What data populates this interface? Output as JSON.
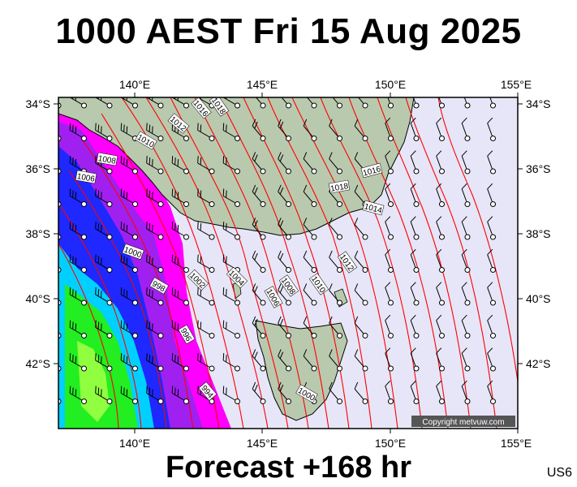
{
  "title": "1000 AEST Fri 15 Aug 2025",
  "forecast_label": "Forecast +168 hr",
  "model_code": "US6",
  "copyright": "Copyright metvuw.com",
  "map": {
    "lon_range": [
      137,
      155
    ],
    "lat_range": [
      -44,
      -33.8
    ],
    "lon_ticks": [
      {
        "value": 140,
        "label": "140°E"
      },
      {
        "value": 145,
        "label": "145°E"
      },
      {
        "value": 150,
        "label": "150°E"
      },
      {
        "value": 155,
        "label": "155°E"
      }
    ],
    "lat_ticks": [
      {
        "value": -34,
        "label": "34°S"
      },
      {
        "value": -36,
        "label": "36°S"
      },
      {
        "value": -38,
        "label": "38°S"
      },
      {
        "value": -40,
        "label": "40°S"
      },
      {
        "value": -42,
        "label": "42°S"
      }
    ],
    "isobar_labels": [
      "1016",
      "1014",
      "1012",
      "1010",
      "1008",
      "1006",
      "1004",
      "1002",
      "1000",
      "998",
      "996",
      "994",
      "1016",
      "1018",
      "1014",
      "1012",
      "1010",
      "1008",
      "1006",
      "1004",
      "1002",
      "1000",
      "998",
      "996",
      "994",
      "1000"
    ],
    "colors": {
      "ocean": "#e6e6f8",
      "land": "#b9c9ae",
      "isobar": "#ff0000",
      "precip_light": "#ff00ff",
      "precip_mid": "#0000ff",
      "precip_heavy": "#00ff00"
    }
  }
}
